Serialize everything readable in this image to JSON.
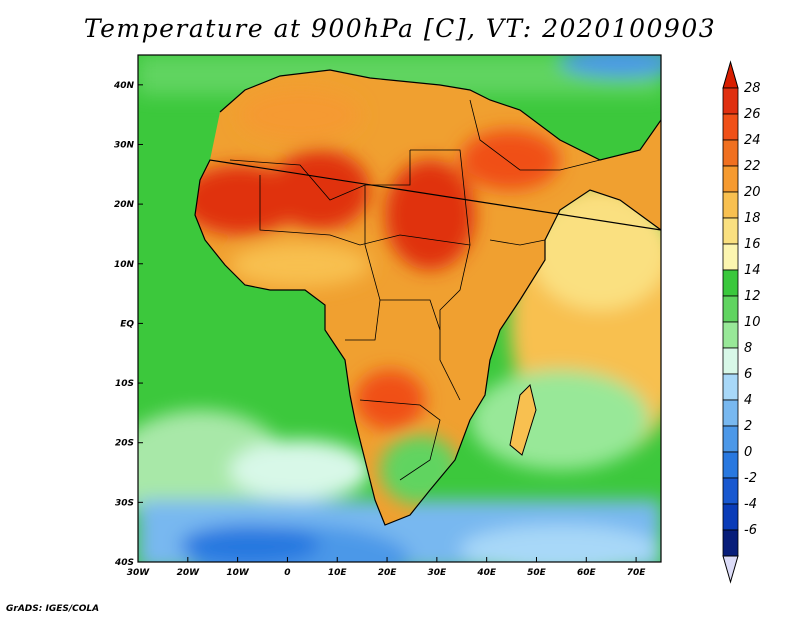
{
  "title": "Temperature at 900hPa [C], VT: 2020100903",
  "credit": "GrADS: IGES/COLA",
  "map": {
    "region": "Africa",
    "lon_range": [
      -30,
      75
    ],
    "lat_range": [
      -40,
      45
    ],
    "lon_ticks": [
      "30W",
      "20W",
      "10W",
      "0",
      "10E",
      "20E",
      "30E",
      "40E",
      "50E",
      "60E",
      "70E"
    ],
    "lat_ticks": [
      "40S",
      "30S",
      "20S",
      "10S",
      "EQ",
      "10N",
      "20N",
      "30N",
      "40N"
    ],
    "ocean_color": "#3cc83c",
    "land_color": "#f0a030"
  },
  "colorbar": {
    "labels": [
      "28",
      "26",
      "24",
      "22",
      "20",
      "18",
      "16",
      "14",
      "12",
      "10",
      "8",
      "6",
      "4",
      "2",
      "0",
      "-2",
      "-4",
      "-6"
    ],
    "colors": [
      "#e03010",
      "#f05018",
      "#f07020",
      "#f59a30",
      "#f8c050",
      "#fae080",
      "#fcf5b0",
      "#3ac83c",
      "#60d460",
      "#98e898",
      "#d8f8e8",
      "#a8d8f8",
      "#78b8f0",
      "#4c98e8",
      "#2878e0",
      "#1858d0",
      "#0a3cb8",
      "#081e7a"
    ],
    "top_color": "#d81e00",
    "bottom_color": "#dcdcf8"
  }
}
